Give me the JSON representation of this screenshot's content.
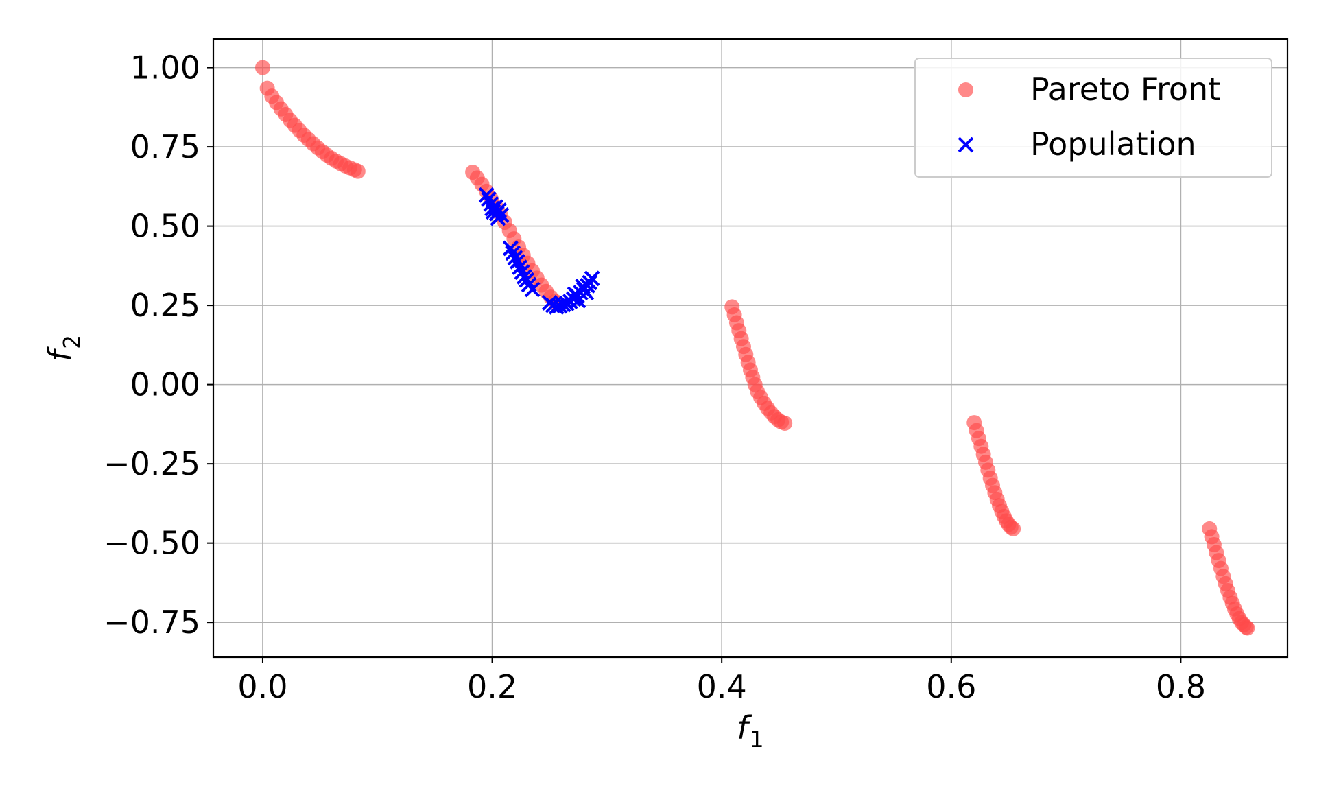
{
  "chart_data": {
    "type": "scatter",
    "title": "",
    "xlabel": "f",
    "xlabel_subscript": "1",
    "ylabel": "f",
    "ylabel_subscript": "2",
    "xlim": [
      -0.043,
      0.893
    ],
    "ylim": [
      -0.86,
      1.09
    ],
    "x_ticks": [
      0.0,
      0.2,
      0.4,
      0.6,
      0.8
    ],
    "x_tick_labels": [
      "0.0",
      "0.2",
      "0.4",
      "0.6",
      "0.8"
    ],
    "y_ticks": [
      1.0,
      0.75,
      0.5,
      0.25,
      0.0,
      -0.25,
      -0.5,
      -0.75
    ],
    "y_tick_labels": [
      "1.00",
      "0.75",
      "0.50",
      "0.25",
      "0.00",
      "−0.25",
      "−0.50",
      "−0.75"
    ],
    "grid": true,
    "legend_placement": "top-right",
    "series": [
      {
        "name": "Pareto Front",
        "marker": "circle",
        "color": "#ff4a4a",
        "points": [
          [
            0.0,
            1.0
          ],
          [
            0.004,
            0.935
          ],
          [
            0.008,
            0.91
          ],
          [
            0.012,
            0.89
          ],
          [
            0.016,
            0.87
          ],
          [
            0.02,
            0.852
          ],
          [
            0.024,
            0.834
          ],
          [
            0.028,
            0.818
          ],
          [
            0.032,
            0.802
          ],
          [
            0.036,
            0.787
          ],
          [
            0.04,
            0.773
          ],
          [
            0.044,
            0.76
          ],
          [
            0.048,
            0.747
          ],
          [
            0.052,
            0.735
          ],
          [
            0.056,
            0.724
          ],
          [
            0.06,
            0.714
          ],
          [
            0.064,
            0.705
          ],
          [
            0.068,
            0.697
          ],
          [
            0.072,
            0.69
          ],
          [
            0.076,
            0.684
          ],
          [
            0.08,
            0.678
          ],
          [
            0.083,
            0.673
          ],
          [
            0.183,
            0.67
          ],
          [
            0.187,
            0.652
          ],
          [
            0.191,
            0.632
          ],
          [
            0.195,
            0.61
          ],
          [
            0.199,
            0.587
          ],
          [
            0.203,
            0.563
          ],
          [
            0.207,
            0.538
          ],
          [
            0.211,
            0.512
          ],
          [
            0.215,
            0.486
          ],
          [
            0.219,
            0.46
          ],
          [
            0.223,
            0.434
          ],
          [
            0.227,
            0.408
          ],
          [
            0.231,
            0.383
          ],
          [
            0.235,
            0.359
          ],
          [
            0.239,
            0.336
          ],
          [
            0.243,
            0.314
          ],
          [
            0.247,
            0.294
          ],
          [
            0.251,
            0.276
          ],
          [
            0.255,
            0.262
          ],
          [
            0.258,
            0.255
          ],
          [
            0.409,
            0.245
          ],
          [
            0.411,
            0.22
          ],
          [
            0.413,
            0.195
          ],
          [
            0.415,
            0.17
          ],
          [
            0.417,
            0.145
          ],
          [
            0.419,
            0.12
          ],
          [
            0.421,
            0.095
          ],
          [
            0.423,
            0.07
          ],
          [
            0.425,
            0.046
          ],
          [
            0.427,
            0.023
          ],
          [
            0.429,
            0.0
          ],
          [
            0.431,
            -0.021
          ],
          [
            0.434,
            -0.041
          ],
          [
            0.437,
            -0.059
          ],
          [
            0.44,
            -0.075
          ],
          [
            0.443,
            -0.089
          ],
          [
            0.446,
            -0.101
          ],
          [
            0.449,
            -0.111
          ],
          [
            0.452,
            -0.118
          ],
          [
            0.455,
            -0.122
          ],
          [
            0.62,
            -0.12
          ],
          [
            0.622,
            -0.145
          ],
          [
            0.624,
            -0.17
          ],
          [
            0.626,
            -0.195
          ],
          [
            0.628,
            -0.22
          ],
          [
            0.63,
            -0.245
          ],
          [
            0.632,
            -0.27
          ],
          [
            0.634,
            -0.295
          ],
          [
            0.636,
            -0.318
          ],
          [
            0.638,
            -0.341
          ],
          [
            0.64,
            -0.362
          ],
          [
            0.642,
            -0.382
          ],
          [
            0.644,
            -0.4
          ],
          [
            0.646,
            -0.416
          ],
          [
            0.648,
            -0.43
          ],
          [
            0.65,
            -0.441
          ],
          [
            0.652,
            -0.45
          ],
          [
            0.654,
            -0.455
          ],
          [
            0.825,
            -0.455
          ],
          [
            0.827,
            -0.48
          ],
          [
            0.829,
            -0.505
          ],
          [
            0.831,
            -0.53
          ],
          [
            0.833,
            -0.555
          ],
          [
            0.835,
            -0.58
          ],
          [
            0.837,
            -0.605
          ],
          [
            0.839,
            -0.628
          ],
          [
            0.841,
            -0.65
          ],
          [
            0.843,
            -0.671
          ],
          [
            0.845,
            -0.69
          ],
          [
            0.847,
            -0.708
          ],
          [
            0.849,
            -0.724
          ],
          [
            0.851,
            -0.738
          ],
          [
            0.853,
            -0.75
          ],
          [
            0.855,
            -0.758
          ],
          [
            0.857,
            -0.765
          ],
          [
            0.858,
            -0.768
          ]
        ]
      },
      {
        "name": "Population",
        "marker": "x",
        "color": "#0000ff",
        "points": [
          [
            0.195,
            0.598
          ],
          [
            0.197,
            0.585
          ],
          [
            0.199,
            0.57
          ],
          [
            0.2,
            0.555
          ],
          [
            0.201,
            0.545
          ],
          [
            0.203,
            0.56
          ],
          [
            0.204,
            0.54
          ],
          [
            0.205,
            0.525
          ],
          [
            0.206,
            0.55
          ],
          [
            0.208,
            0.535
          ],
          [
            0.216,
            0.43
          ],
          [
            0.218,
            0.415
          ],
          [
            0.22,
            0.4
          ],
          [
            0.222,
            0.388
          ],
          [
            0.224,
            0.37
          ],
          [
            0.226,
            0.355
          ],
          [
            0.228,
            0.34
          ],
          [
            0.23,
            0.33
          ],
          [
            0.232,
            0.315
          ],
          [
            0.235,
            0.3
          ],
          [
            0.25,
            0.258
          ],
          [
            0.253,
            0.25
          ],
          [
            0.256,
            0.245
          ],
          [
            0.259,
            0.248
          ],
          [
            0.262,
            0.252
          ],
          [
            0.265,
            0.256
          ],
          [
            0.268,
            0.262
          ],
          [
            0.271,
            0.27
          ],
          [
            0.274,
            0.28
          ],
          [
            0.277,
            0.29
          ],
          [
            0.28,
            0.3
          ],
          [
            0.283,
            0.312
          ],
          [
            0.285,
            0.322
          ],
          [
            0.287,
            0.335
          ],
          [
            0.279,
            0.31
          ],
          [
            0.275,
            0.265
          ],
          [
            0.272,
            0.285
          ],
          [
            0.282,
            0.29
          ]
        ]
      }
    ]
  }
}
